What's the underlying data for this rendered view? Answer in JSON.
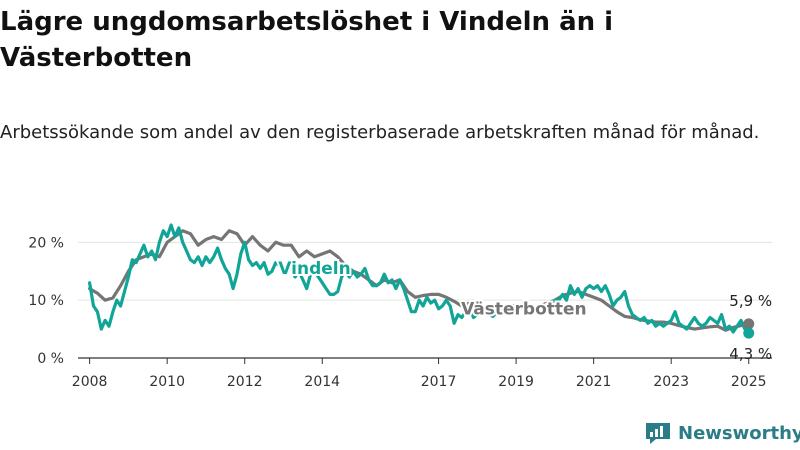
{
  "title": "Lägre ungdomsarbetslöshet i Vindeln än i Västerbotten",
  "subtitle": "Arbetssökande som andel av den registerbaserade arbetskraften månad för månad.",
  "brand": {
    "name": "Newsworthy"
  },
  "colors": {
    "vindeln": "#11a598",
    "vasterbotten": "#757575",
    "grid": "#e3e3e3",
    "axis": "#333333"
  },
  "chart_data": {
    "type": "line",
    "title": "Lägre ungdomsarbetslöshet i Vindeln än i Västerbotten",
    "ylabel": "",
    "xlabel": "",
    "xlim": [
      2007.7,
      2025.6
    ],
    "ylim": [
      0,
      23
    ],
    "yticks": [
      0,
      10,
      20
    ],
    "ytick_labels": [
      "0 %",
      "10 %",
      "20 %"
    ],
    "xticks": [
      2008,
      2010,
      2012,
      2014,
      2017,
      2019,
      2021,
      2023,
      2025
    ],
    "xtick_labels": [
      "2008",
      "2010",
      "2012",
      "2014",
      "2017",
      "2019",
      "2021",
      "2023",
      "2025"
    ],
    "grid": "horizontal",
    "series": [
      {
        "name": "Västerbotten",
        "color": "#757575",
        "end_label": "5,9 %",
        "points": [
          [
            2008.0,
            12.0
          ],
          [
            2008.2,
            11.2
          ],
          [
            2008.4,
            10.0
          ],
          [
            2008.6,
            10.4
          ],
          [
            2008.8,
            12.5
          ],
          [
            2009.0,
            15.0
          ],
          [
            2009.2,
            17.0
          ],
          [
            2009.4,
            17.5
          ],
          [
            2009.6,
            18.0
          ],
          [
            2009.8,
            17.5
          ],
          [
            2010.0,
            20.0
          ],
          [
            2010.2,
            21.0
          ],
          [
            2010.4,
            22.0
          ],
          [
            2010.6,
            21.5
          ],
          [
            2010.8,
            19.5
          ],
          [
            2011.0,
            20.5
          ],
          [
            2011.2,
            21.0
          ],
          [
            2011.4,
            20.5
          ],
          [
            2011.6,
            22.0
          ],
          [
            2011.8,
            21.5
          ],
          [
            2012.0,
            19.5
          ],
          [
            2012.2,
            21.0
          ],
          [
            2012.4,
            19.5
          ],
          [
            2012.6,
            18.5
          ],
          [
            2012.8,
            20.0
          ],
          [
            2013.0,
            19.5
          ],
          [
            2013.2,
            19.5
          ],
          [
            2013.4,
            17.5
          ],
          [
            2013.6,
            18.5
          ],
          [
            2013.8,
            17.5
          ],
          [
            2014.0,
            18.0
          ],
          [
            2014.2,
            18.5
          ],
          [
            2014.4,
            17.5
          ],
          [
            2014.6,
            16.0
          ],
          [
            2014.8,
            15.0
          ],
          [
            2015.0,
            14.5
          ],
          [
            2015.2,
            13.5
          ],
          [
            2015.4,
            12.5
          ],
          [
            2015.6,
            13.5
          ],
          [
            2015.8,
            13.0
          ],
          [
            2016.0,
            13.5
          ],
          [
            2016.2,
            11.5
          ],
          [
            2016.4,
            10.5
          ],
          [
            2016.6,
            10.8
          ],
          [
            2016.8,
            11.0
          ],
          [
            2017.0,
            11.0
          ],
          [
            2017.2,
            10.5
          ],
          [
            2017.4,
            9.8
          ],
          [
            2017.6,
            9.0
          ],
          [
            2017.8,
            9.5
          ],
          [
            2018.0,
            9.3
          ],
          [
            2018.2,
            8.8
          ],
          [
            2018.4,
            8.6
          ],
          [
            2018.6,
            8.5
          ],
          [
            2018.8,
            8.8
          ],
          [
            2019.0,
            9.2
          ],
          [
            2019.2,
            8.6
          ],
          [
            2019.4,
            8.5
          ],
          [
            2019.6,
            9.0
          ],
          [
            2019.8,
            9.5
          ],
          [
            2020.0,
            10.0
          ],
          [
            2020.2,
            10.8
          ],
          [
            2020.4,
            11.2
          ],
          [
            2020.6,
            11.5
          ],
          [
            2020.8,
            11.0
          ],
          [
            2021.0,
            10.5
          ],
          [
            2021.2,
            10.0
          ],
          [
            2021.4,
            9.0
          ],
          [
            2021.6,
            8.0
          ],
          [
            2021.8,
            7.2
          ],
          [
            2022.0,
            7.0
          ],
          [
            2022.2,
            6.6
          ],
          [
            2022.4,
            6.4
          ],
          [
            2022.6,
            6.2
          ],
          [
            2022.8,
            6.2
          ],
          [
            2023.0,
            6.0
          ],
          [
            2023.2,
            5.6
          ],
          [
            2023.4,
            5.3
          ],
          [
            2023.6,
            5.0
          ],
          [
            2023.8,
            5.2
          ],
          [
            2024.0,
            5.4
          ],
          [
            2024.2,
            5.5
          ],
          [
            2024.4,
            4.8
          ],
          [
            2024.6,
            5.3
          ],
          [
            2024.8,
            5.6
          ],
          [
            2025.0,
            5.9
          ]
        ]
      },
      {
        "name": "Vindeln",
        "color": "#11a598",
        "end_label": "4,3 %",
        "points": [
          [
            2008.0,
            13.0
          ],
          [
            2008.1,
            9.0
          ],
          [
            2008.2,
            8.0
          ],
          [
            2008.3,
            5.0
          ],
          [
            2008.4,
            6.5
          ],
          [
            2008.5,
            5.5
          ],
          [
            2008.6,
            8.0
          ],
          [
            2008.7,
            10.0
          ],
          [
            2008.8,
            9.0
          ],
          [
            2008.9,
            11.5
          ],
          [
            2009.0,
            14.0
          ],
          [
            2009.1,
            17.0
          ],
          [
            2009.2,
            16.5
          ],
          [
            2009.3,
            18.0
          ],
          [
            2009.4,
            19.5
          ],
          [
            2009.5,
            17.5
          ],
          [
            2009.6,
            18.5
          ],
          [
            2009.7,
            17.0
          ],
          [
            2009.8,
            20.0
          ],
          [
            2009.9,
            22.0
          ],
          [
            2010.0,
            21.0
          ],
          [
            2010.1,
            23.0
          ],
          [
            2010.2,
            21.0
          ],
          [
            2010.3,
            22.5
          ],
          [
            2010.4,
            20.0
          ],
          [
            2010.5,
            18.5
          ],
          [
            2010.6,
            17.0
          ],
          [
            2010.7,
            16.5
          ],
          [
            2010.8,
            17.5
          ],
          [
            2010.9,
            16.0
          ],
          [
            2011.0,
            17.5
          ],
          [
            2011.1,
            16.5
          ],
          [
            2011.2,
            17.5
          ],
          [
            2011.3,
            19.0
          ],
          [
            2011.4,
            17.0
          ],
          [
            2011.5,
            15.5
          ],
          [
            2011.6,
            14.5
          ],
          [
            2011.7,
            12.0
          ],
          [
            2011.8,
            14.5
          ],
          [
            2011.9,
            18.0
          ],
          [
            2012.0,
            20.0
          ],
          [
            2012.1,
            17.0
          ],
          [
            2012.2,
            16.0
          ],
          [
            2012.3,
            16.5
          ],
          [
            2012.4,
            15.5
          ],
          [
            2012.5,
            16.5
          ],
          [
            2012.6,
            14.5
          ],
          [
            2012.7,
            15.0
          ],
          [
            2012.8,
            16.5
          ],
          [
            2012.9,
            16.0
          ],
          [
            2013.0,
            15.0
          ],
          [
            2013.1,
            16.0
          ],
          [
            2013.2,
            15.5
          ],
          [
            2013.3,
            14.0
          ],
          [
            2013.4,
            15.0
          ],
          [
            2013.5,
            13.5
          ],
          [
            2013.6,
            12.0
          ],
          [
            2013.7,
            14.5
          ],
          [
            2013.8,
            15.0
          ],
          [
            2013.9,
            14.0
          ],
          [
            2014.0,
            13.0
          ],
          [
            2014.1,
            12.0
          ],
          [
            2014.2,
            11.0
          ],
          [
            2014.3,
            11.0
          ],
          [
            2014.4,
            11.5
          ],
          [
            2014.5,
            14.0
          ],
          [
            2014.6,
            15.0
          ],
          [
            2014.7,
            14.0
          ],
          [
            2014.8,
            15.0
          ],
          [
            2014.9,
            14.0
          ],
          [
            2015.0,
            14.5
          ],
          [
            2015.1,
            15.5
          ],
          [
            2015.2,
            13.5
          ],
          [
            2015.3,
            12.5
          ],
          [
            2015.4,
            12.5
          ],
          [
            2015.5,
            13.0
          ],
          [
            2015.6,
            14.5
          ],
          [
            2015.7,
            13.0
          ],
          [
            2015.8,
            13.5
          ],
          [
            2015.9,
            12.0
          ],
          [
            2016.0,
            13.5
          ],
          [
            2016.1,
            12.0
          ],
          [
            2016.2,
            10.0
          ],
          [
            2016.3,
            8.0
          ],
          [
            2016.4,
            8.0
          ],
          [
            2016.5,
            10.0
          ],
          [
            2016.6,
            9.0
          ],
          [
            2016.7,
            10.5
          ],
          [
            2016.8,
            9.5
          ],
          [
            2016.9,
            10.0
          ],
          [
            2017.0,
            8.5
          ],
          [
            2017.1,
            9.0
          ],
          [
            2017.2,
            10.0
          ],
          [
            2017.3,
            9.0
          ],
          [
            2017.4,
            6.0
          ],
          [
            2017.5,
            7.5
          ],
          [
            2017.6,
            7.0
          ],
          [
            2017.7,
            8.0
          ],
          [
            2017.8,
            8.5
          ],
          [
            2017.9,
            7.0
          ],
          [
            2018.0,
            7.5
          ],
          [
            2018.2,
            8.0
          ],
          [
            2018.4,
            7.2
          ],
          [
            2018.6,
            8.5
          ],
          [
            2018.8,
            8.0
          ],
          [
            2019.0,
            9.0
          ],
          [
            2019.1,
            8.5
          ],
          [
            2019.2,
            9.5
          ],
          [
            2019.4,
            8.5
          ],
          [
            2019.6,
            8.5
          ],
          [
            2019.8,
            9.0
          ],
          [
            2020.0,
            10.0
          ],
          [
            2020.1,
            10.0
          ],
          [
            2020.2,
            11.0
          ],
          [
            2020.3,
            10.0
          ],
          [
            2020.4,
            12.5
          ],
          [
            2020.5,
            11.0
          ],
          [
            2020.6,
            12.0
          ],
          [
            2020.7,
            10.5
          ],
          [
            2020.8,
            12.0
          ],
          [
            2020.9,
            12.5
          ],
          [
            2021.0,
            12.0
          ],
          [
            2021.1,
            12.5
          ],
          [
            2021.2,
            11.5
          ],
          [
            2021.3,
            12.5
          ],
          [
            2021.4,
            11.0
          ],
          [
            2021.5,
            9.0
          ],
          [
            2021.6,
            10.0
          ],
          [
            2021.7,
            10.5
          ],
          [
            2021.8,
            11.5
          ],
          [
            2021.9,
            9.0
          ],
          [
            2022.0,
            7.5
          ],
          [
            2022.1,
            7.0
          ],
          [
            2022.2,
            6.5
          ],
          [
            2022.3,
            7.0
          ],
          [
            2022.4,
            6.0
          ],
          [
            2022.5,
            6.5
          ],
          [
            2022.6,
            5.5
          ],
          [
            2022.7,
            6.0
          ],
          [
            2022.8,
            5.5
          ],
          [
            2022.9,
            6.0
          ],
          [
            2023.0,
            6.5
          ],
          [
            2023.1,
            8.0
          ],
          [
            2023.2,
            6.0
          ],
          [
            2023.3,
            5.5
          ],
          [
            2023.4,
            5.0
          ],
          [
            2023.5,
            6.0
          ],
          [
            2023.6,
            7.0
          ],
          [
            2023.7,
            6.0
          ],
          [
            2023.8,
            5.5
          ],
          [
            2023.9,
            6.0
          ],
          [
            2024.0,
            7.0
          ],
          [
            2024.1,
            6.5
          ],
          [
            2024.2,
            6.0
          ],
          [
            2024.3,
            7.5
          ],
          [
            2024.4,
            5.0
          ],
          [
            2024.5,
            5.5
          ],
          [
            2024.6,
            4.5
          ],
          [
            2024.7,
            5.5
          ],
          [
            2024.8,
            6.5
          ],
          [
            2024.9,
            5.0
          ],
          [
            2025.0,
            4.3
          ]
        ]
      }
    ],
    "annotations": [
      {
        "text": "Vindeln",
        "series": "Vindeln",
        "x": 2013.8,
        "y": 14.5
      },
      {
        "text": "Västerbotten",
        "series": "Västerbotten",
        "x": 2019.2,
        "y": 7.5
      }
    ]
  }
}
